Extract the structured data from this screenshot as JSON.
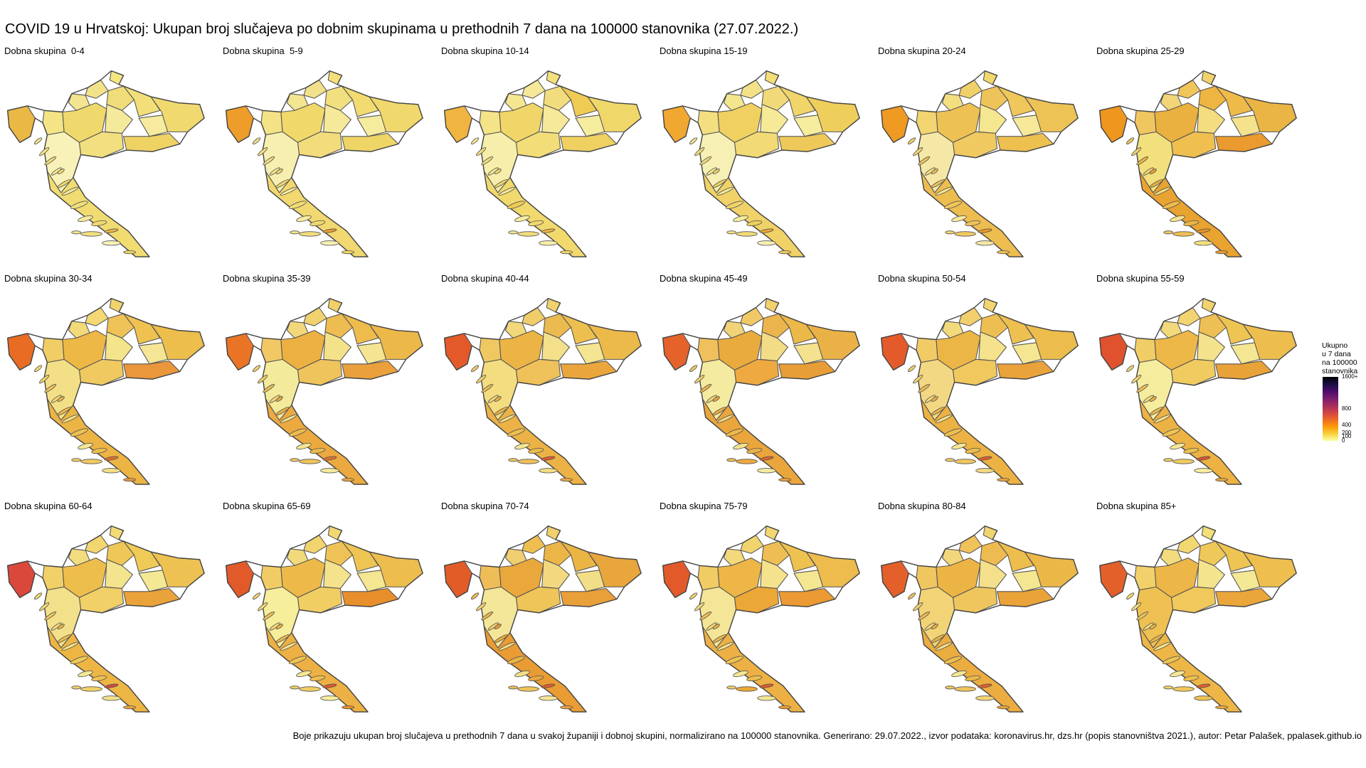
{
  "title": "COVID 19 u Hrvatskoj: Ukupan broj slučajeva po dobnim skupinama u prethodnih 7 dana na 100000 stanovnika (27.07.2022.)",
  "footnote": "Boje prikazuju ukupan broj slučajeva u prethodnih 7 dana u svakoj županiji i dobnoj skupini, normalizirano na 100000 stanovnika. Generirano: 29.07.2022., izvor podataka: koronavirus.hr, dzs.hr (popis stanovništva 2021.), autor: Petar Palašek, ppalasek.github.io",
  "legend": {
    "title_lines": [
      "Ukupno",
      "u 7 dana",
      "na 100000",
      "stanovnika"
    ],
    "ticks": [
      {
        "label": "1600+",
        "value": 1600
      },
      {
        "label": "800",
        "value": 800
      },
      {
        "label": "400",
        "value": 400
      },
      {
        "label": "200",
        "value": 200
      },
      {
        "label": "100",
        "value": 100
      },
      {
        "label": "0",
        "value": 0
      }
    ],
    "colors": [
      "#fcffa4",
      "#f7d13d",
      "#fb9b06",
      "#ed6925",
      "#cf4446",
      "#a52c60",
      "#781c6d",
      "#4a0c6b",
      "#1b0c41",
      "#000004"
    ]
  },
  "panels": [
    {
      "label": "Dobna skupina  0-4",
      "colors": [
        "#f2e28a",
        "#f5e680",
        "#f0dc78",
        "#f3e590",
        "#efd96c",
        "#f5ea9c",
        "#f2df7a",
        "#f6eb9e",
        "#f0da70",
        "#e9b845",
        "#f1df80",
        "#f8f2b8",
        "#eed364",
        "#f4e486",
        "#f1dc72"
      ]
    },
    {
      "label": "Dobna skupina  5-9",
      "colors": [
        "#f2e08a",
        "#f4e07a",
        "#f2df7f",
        "#f4e690",
        "#f0d86a",
        "#f6ea9a",
        "#f2dc72",
        "#f6ec9e",
        "#f0d86c",
        "#ee9c2a",
        "#f2dc7c",
        "#f7efb0",
        "#efd466",
        "#f4e286",
        "#f1d870"
      ]
    },
    {
      "label": "Dobna skupina 10-14",
      "colors": [
        "#f5e898",
        "#f3e07e",
        "#f1dd7d",
        "#f4e790",
        "#f0d668",
        "#f6ea9a",
        "#f0cb54",
        "#f6ec9e",
        "#f0d76a",
        "#f0b440",
        "#f3dd78",
        "#f6eeaa",
        "#efd162",
        "#f4e388",
        "#f1d96e"
      ]
    },
    {
      "label": "Dobna skupina 15-19",
      "colors": [
        "#f3e188",
        "#f3de78",
        "#f1d97a",
        "#f4e68e",
        "#efd060",
        "#f6ea98",
        "#f1d46a",
        "#f6ec9e",
        "#efcf5c",
        "#f0a830",
        "#f2da76",
        "#f7f0b4",
        "#eec95a",
        "#f3df80",
        "#f0d268"
      ]
    },
    {
      "label": "Dobna skupina 20-24",
      "colors": [
        "#f0d068",
        "#f2d86e",
        "#eec45a",
        "#f3df80",
        "#edc154",
        "#f5e690",
        "#f0c75a",
        "#f6e99a",
        "#edc356",
        "#ef9a22",
        "#f0c961",
        "#f5e8a6",
        "#eec050",
        "#f2d470",
        "#eebd50"
      ]
    },
    {
      "label": "Dobna skupina 25-29",
      "colors": [
        "#f0c55a",
        "#f2d26a",
        "#eeb542",
        "#f2d576",
        "#eab140",
        "#f4dc80",
        "#eebb4a",
        "#f5e28c",
        "#eab545",
        "#ee961e",
        "#efc050",
        "#f1e07c",
        "#ea9a2e",
        "#f0c660",
        "#e9a330"
      ]
    },
    {
      "label": "Dobna skupina 30-34",
      "colors": [
        "#f3d874",
        "#f1d46c",
        "#efc258",
        "#f2da7a",
        "#edb846",
        "#f4e48a",
        "#eec150",
        "#f5e696",
        "#edbe4c",
        "#e86c24",
        "#f0c960",
        "#f3df86",
        "#e9973a",
        "#f1cd66",
        "#ecb444"
      ]
    },
    {
      "label": "Dobna skupina 35-39",
      "colors": [
        "#f2d26e",
        "#f1d068",
        "#edbd52",
        "#f2d87a",
        "#ecb142",
        "#f4e28a",
        "#eebc4c",
        "#f5e592",
        "#ecb849",
        "#e97426",
        "#efc45c",
        "#f4ea9c",
        "#eaa03c",
        "#f1c864",
        "#eba940"
      ]
    },
    {
      "label": "Dobna skupina 40-44",
      "colors": [
        "#f1cd6a",
        "#f2d26e",
        "#ecbb50",
        "#f2d87a",
        "#ebb444",
        "#f4e08a",
        "#edbf4e",
        "#f5e592",
        "#ebba4b",
        "#e4592a",
        "#efc15a",
        "#f3dd80",
        "#eaa63c",
        "#f0c862",
        "#ecb246"
      ]
    },
    {
      "label": "Dobna skupina 45-49",
      "colors": [
        "#f0c866",
        "#f2d06c",
        "#ebb44c",
        "#f1d478",
        "#eaab3e",
        "#f3dc86",
        "#ecb848",
        "#f4e28e",
        "#eab246",
        "#e5622a",
        "#eeaa40",
        "#f5eba0",
        "#e89e36",
        "#efc05c",
        "#eaa63c"
      ]
    },
    {
      "label": "Dobna skupina 50-54",
      "colors": [
        "#f1cf6c",
        "#f2d470",
        "#edbf52",
        "#f2da7c",
        "#ecb646",
        "#f4e28c",
        "#edc050",
        "#f5e692",
        "#ecbc4d",
        "#e45a2b",
        "#f0c85e",
        "#f2d882",
        "#e9a33a",
        "#f1cb66",
        "#ecb244"
      ]
    },
    {
      "label": "Dobna skupina 55-59",
      "colors": [
        "#f2d470",
        "#f2d46e",
        "#eebf54",
        "#f2da7c",
        "#edb848",
        "#f4e28c",
        "#eec452",
        "#f5e694",
        "#edbe4e",
        "#e0522e",
        "#f0cc60",
        "#f6ec9e",
        "#e9a238",
        "#f1cd66",
        "#ecb244"
      ]
    },
    {
      "label": "Dobna skupina 60-64",
      "colors": [
        "#f2d670",
        "#f3da74",
        "#efc658",
        "#f2dc7e",
        "#eebe4c",
        "#f4e48e",
        "#efca56",
        "#f5e894",
        "#eec252",
        "#d9483a",
        "#f1d068",
        "#f3e08a",
        "#eaa33a",
        "#f1d068",
        "#edb644"
      ]
    },
    {
      "label": "Dobna skupina 65-69",
      "colors": [
        "#f2d46e",
        "#f3d872",
        "#eec256",
        "#f2da7c",
        "#edb949",
        "#f4e28c",
        "#eec452",
        "#f5e692",
        "#edbd4e",
        "#e35a2a",
        "#f1ce64",
        "#f6ee9a",
        "#e88f2c",
        "#f1cc64",
        "#ecb044"
      ]
    },
    {
      "label": "Dobna skupina 70-74",
      "colors": [
        "#efbe50",
        "#f2d06c",
        "#ecb548",
        "#f0ce70",
        "#eaa83c",
        "#f3d880",
        "#ebb545",
        "#f3de88",
        "#e8a63c",
        "#e25c28",
        "#efc458",
        "#f4e698",
        "#e9a038",
        "#efbd58",
        "#e99c34"
      ]
    },
    {
      "label": "Dobna skupina 75-79",
      "colors": [
        "#f2d46e",
        "#f3d872",
        "#eebe54",
        "#f2da7c",
        "#edb646",
        "#f4e28c",
        "#eec250",
        "#f5e692",
        "#edbc4c",
        "#e25a2a",
        "#eba836",
        "#f4e696",
        "#eb9a34",
        "#f1cc64",
        "#ecb044"
      ]
    },
    {
      "label": "Dobna skupina 80-84",
      "colors": [
        "#f0c25a",
        "#f2d46e",
        "#edbb50",
        "#f2d87a",
        "#ecb444",
        "#f4e08a",
        "#edbe4e",
        "#f5e692",
        "#ebb848",
        "#e3602a",
        "#efc55e",
        "#f2d476",
        "#e9a338",
        "#f0c660",
        "#ebac40"
      ]
    },
    {
      "label": "Dobna skupina 85+",
      "colors": [
        "#f3d872",
        "#f3de78",
        "#efc85a",
        "#f2dc7e",
        "#edb648",
        "#f4e48e",
        "#eec452",
        "#f5e894",
        "#eebf4e",
        "#e4602a",
        "#f0c85c",
        "#efc152",
        "#eaa63a",
        "#f2d06a",
        "#edb646"
      ]
    }
  ]
}
